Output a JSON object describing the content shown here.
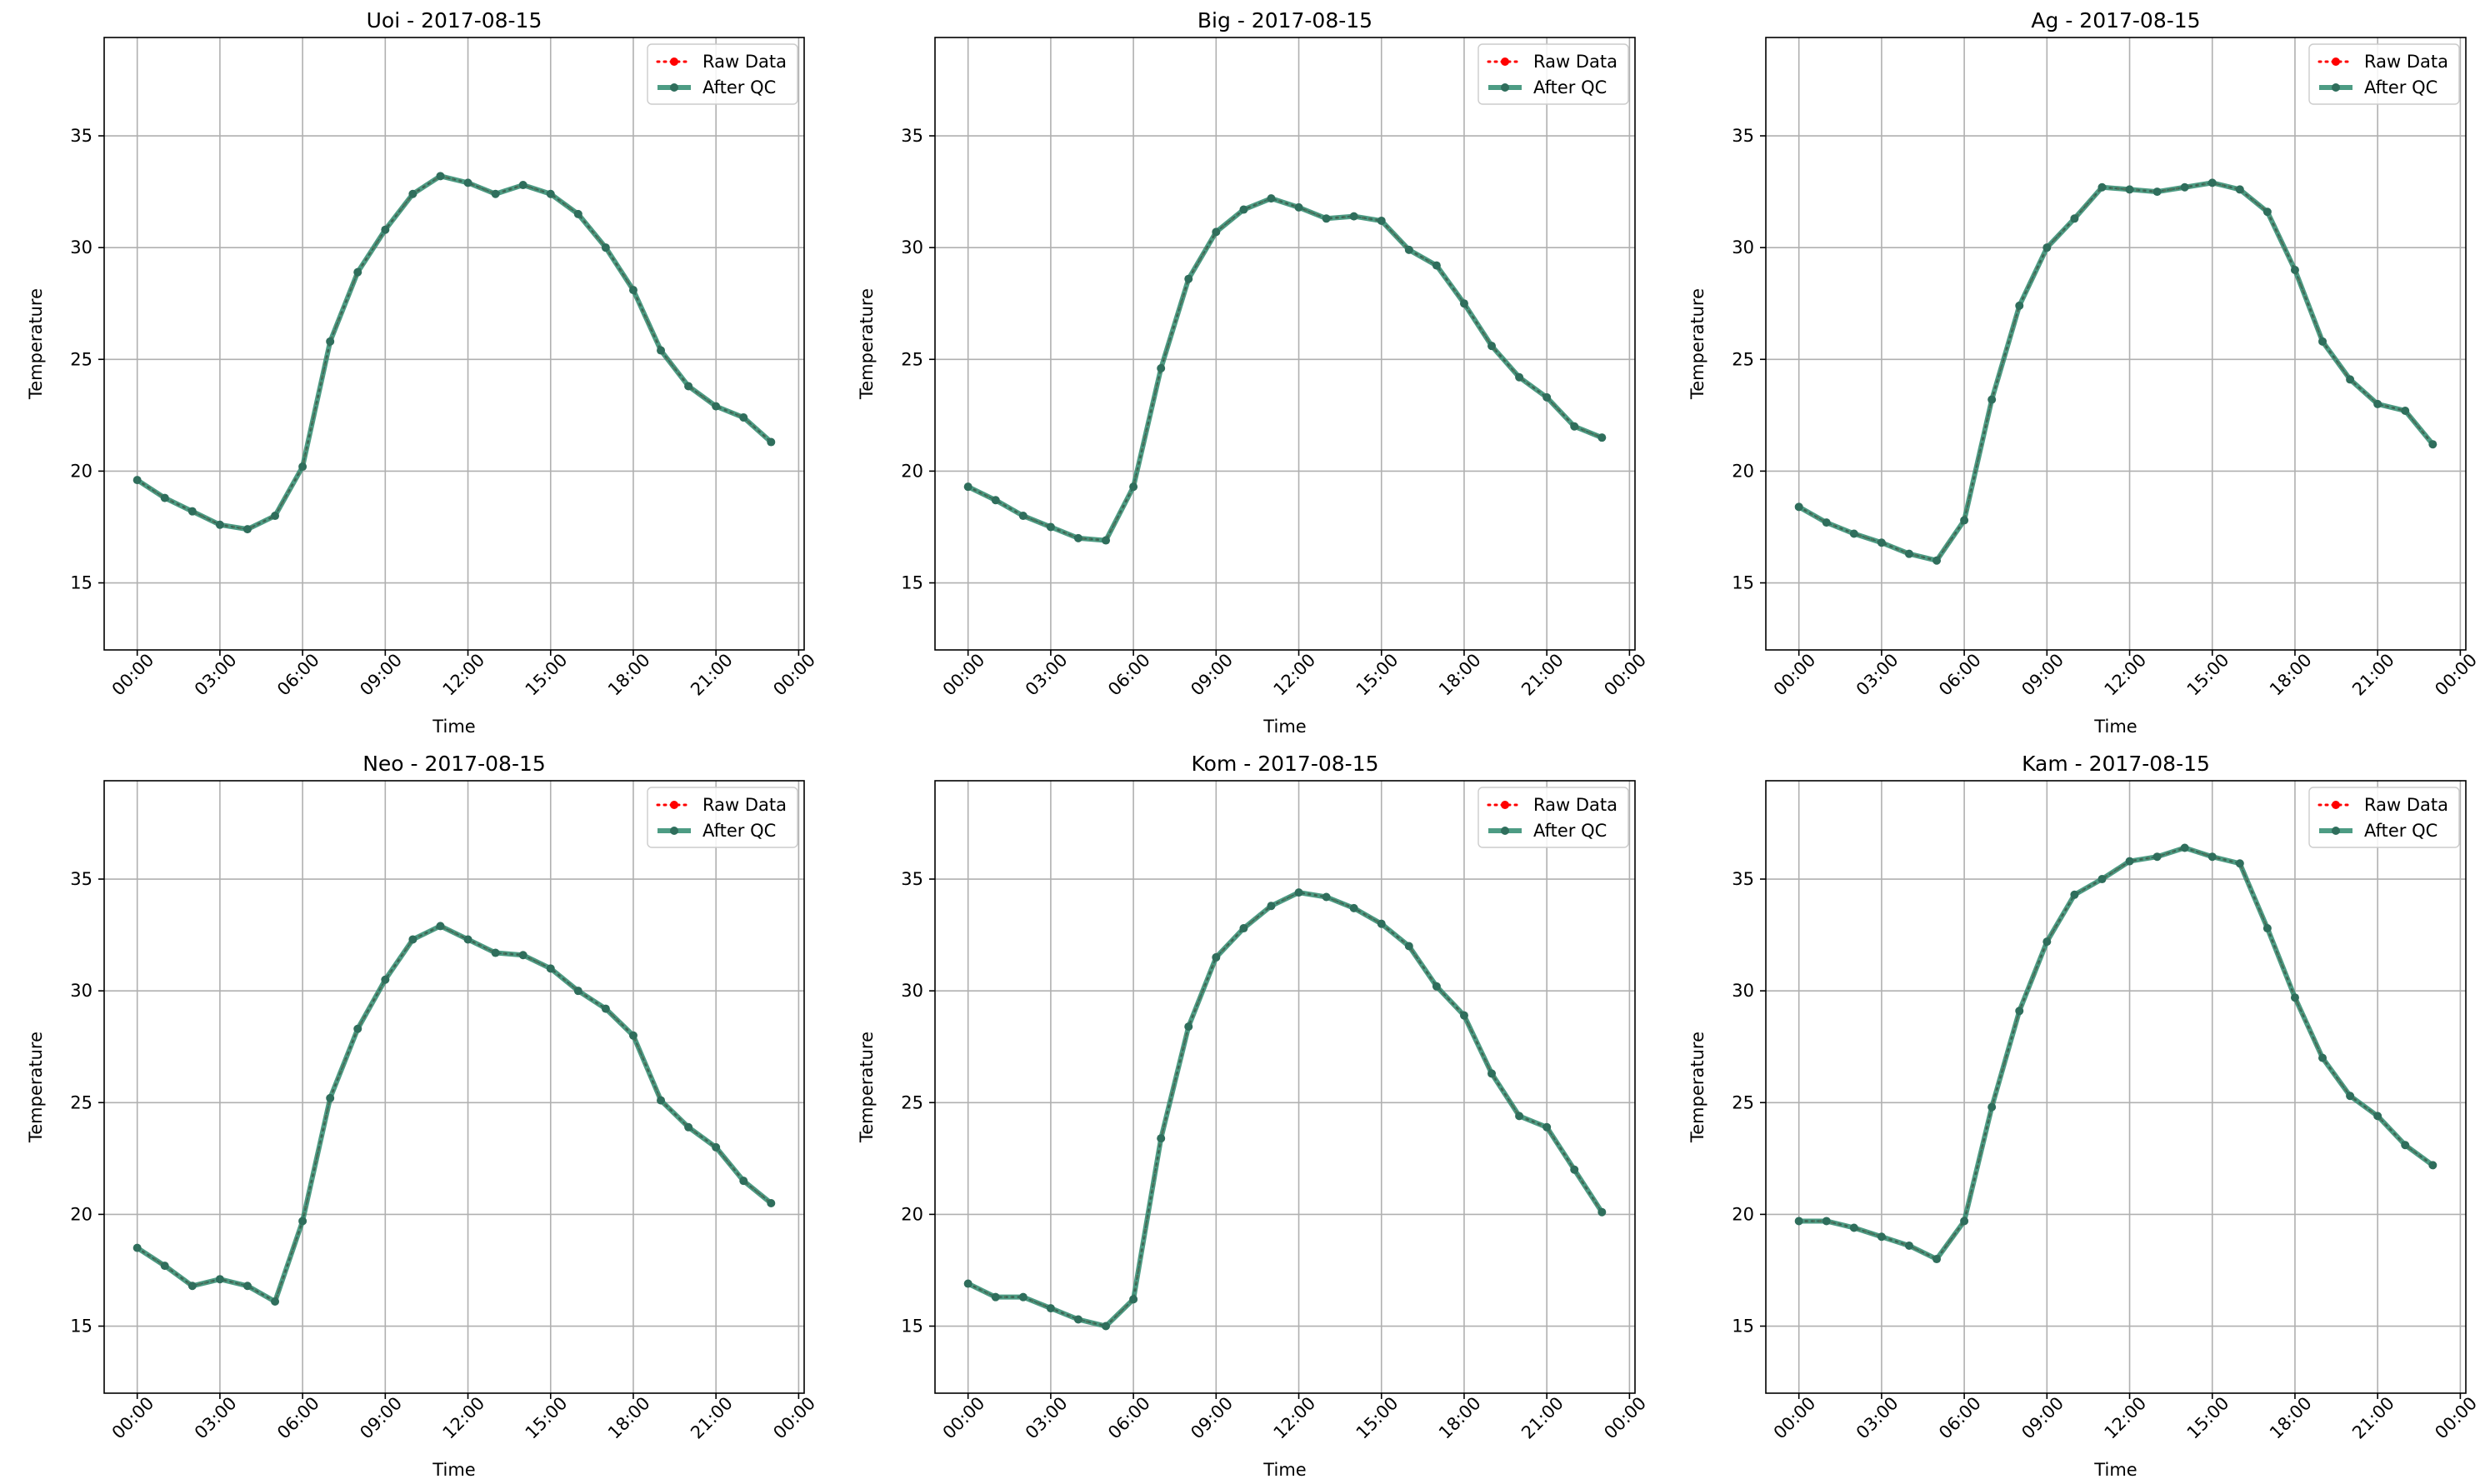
{
  "figure": {
    "legend_placement": "upper right",
    "xtick_labels": [
      "00:00",
      "03:00",
      "06:00",
      "09:00",
      "12:00",
      "15:00",
      "18:00",
      "21:00",
      "00:00"
    ],
    "ytick_labels": [
      "15",
      "20",
      "25",
      "30",
      "35"
    ],
    "colors": {
      "raw": "#ff0000",
      "qc": "#2e8b6e",
      "grid": "#b0b0b0"
    }
  },
  "chart_data": [
    {
      "type": "line",
      "title": "Uoi - 2017-08-15",
      "xlabel": "Time",
      "ylabel": "Temperature",
      "x_unit": "hour of day",
      "xlim": [
        -1.2,
        24.2
      ],
      "ylim": [
        12,
        39.4
      ],
      "grid": true,
      "legend": "upper right",
      "x": [
        0,
        1,
        2,
        3,
        4,
        5,
        6,
        7,
        8,
        9,
        10,
        11,
        12,
        13,
        14,
        15,
        16,
        17,
        18,
        19,
        20,
        21,
        22,
        23
      ],
      "series": [
        {
          "name": "Raw Data",
          "values": [
            19.6,
            18.8,
            18.2,
            17.6,
            17.4,
            18.0,
            20.2,
            25.8,
            28.9,
            30.8,
            32.4,
            33.2,
            32.9,
            32.4,
            32.8,
            32.4,
            31.5,
            30.0,
            28.1,
            25.4,
            23.8,
            22.9,
            22.4,
            21.3
          ]
        },
        {
          "name": "After QC",
          "values": [
            19.6,
            18.8,
            18.2,
            17.6,
            17.4,
            18.0,
            20.2,
            25.8,
            28.9,
            30.8,
            32.4,
            33.2,
            32.9,
            32.4,
            32.8,
            32.4,
            31.5,
            30.0,
            28.1,
            25.4,
            23.8,
            22.9,
            22.4,
            21.3
          ]
        }
      ]
    },
    {
      "type": "line",
      "title": "Big - 2017-08-15",
      "xlabel": "Time",
      "ylabel": "Temperature",
      "x_unit": "hour of day",
      "xlim": [
        -1.2,
        24.2
      ],
      "ylim": [
        12,
        39.4
      ],
      "grid": true,
      "legend": "upper right",
      "x": [
        0,
        1,
        2,
        3,
        4,
        5,
        6,
        7,
        8,
        9,
        10,
        11,
        12,
        13,
        14,
        15,
        16,
        17,
        18,
        19,
        20,
        21,
        22,
        23
      ],
      "series": [
        {
          "name": "Raw Data",
          "values": [
            19.3,
            18.7,
            18.0,
            17.5,
            17.0,
            16.9,
            19.3,
            24.6,
            28.6,
            30.7,
            31.7,
            32.2,
            31.8,
            31.3,
            31.4,
            31.2,
            29.9,
            29.2,
            27.5,
            25.6,
            24.2,
            23.3,
            22.0,
            21.5
          ]
        },
        {
          "name": "After QC",
          "values": [
            19.3,
            18.7,
            18.0,
            17.5,
            17.0,
            16.9,
            19.3,
            24.6,
            28.6,
            30.7,
            31.7,
            32.2,
            31.8,
            31.3,
            31.4,
            31.2,
            29.9,
            29.2,
            27.5,
            25.6,
            24.2,
            23.3,
            22.0,
            21.5
          ]
        }
      ]
    },
    {
      "type": "line",
      "title": "Ag - 2017-08-15",
      "xlabel": "Time",
      "ylabel": "Temperature",
      "x_unit": "hour of day",
      "xlim": [
        -1.2,
        24.2
      ],
      "ylim": [
        12,
        39.4
      ],
      "grid": true,
      "legend": "upper right",
      "x": [
        0,
        1,
        2,
        3,
        4,
        5,
        6,
        7,
        8,
        9,
        10,
        11,
        12,
        13,
        14,
        15,
        16,
        17,
        18,
        19,
        20,
        21,
        22,
        23
      ],
      "series": [
        {
          "name": "Raw Data",
          "values": [
            18.4,
            17.7,
            17.2,
            16.8,
            16.3,
            16.0,
            17.8,
            23.2,
            27.4,
            30.0,
            31.3,
            32.7,
            32.6,
            32.5,
            32.7,
            32.9,
            32.6,
            31.6,
            29.0,
            25.8,
            24.1,
            23.0,
            22.7,
            21.2
          ]
        },
        {
          "name": "After QC",
          "values": [
            18.4,
            17.7,
            17.2,
            16.8,
            16.3,
            16.0,
            17.8,
            23.2,
            27.4,
            30.0,
            31.3,
            32.7,
            32.6,
            32.5,
            32.7,
            32.9,
            32.6,
            31.6,
            29.0,
            25.8,
            24.1,
            23.0,
            22.7,
            21.2
          ]
        }
      ]
    },
    {
      "type": "line",
      "title": "Neo - 2017-08-15",
      "xlabel": "Time",
      "ylabel": "Temperature",
      "x_unit": "hour of day",
      "xlim": [
        -1.2,
        24.2
      ],
      "ylim": [
        12,
        39.4
      ],
      "grid": true,
      "legend": "upper right",
      "x": [
        0,
        1,
        2,
        3,
        4,
        5,
        6,
        7,
        8,
        9,
        10,
        11,
        12,
        13,
        14,
        15,
        16,
        17,
        18,
        19,
        20,
        21,
        22,
        23
      ],
      "series": [
        {
          "name": "Raw Data",
          "values": [
            18.5,
            17.7,
            16.8,
            17.1,
            16.8,
            16.1,
            19.7,
            25.2,
            28.3,
            30.5,
            32.3,
            32.9,
            32.3,
            31.7,
            31.6,
            31.0,
            30.0,
            29.2,
            28.0,
            25.1,
            23.9,
            23.0,
            21.5,
            20.5
          ]
        },
        {
          "name": "After QC",
          "values": [
            18.5,
            17.7,
            16.8,
            17.1,
            16.8,
            16.1,
            19.7,
            25.2,
            28.3,
            30.5,
            32.3,
            32.9,
            32.3,
            31.7,
            31.6,
            31.0,
            30.0,
            29.2,
            28.0,
            25.1,
            23.9,
            23.0,
            21.5,
            20.5
          ]
        }
      ]
    },
    {
      "type": "line",
      "title": "Kom - 2017-08-15",
      "xlabel": "Time",
      "ylabel": "Temperature",
      "x_unit": "hour of day",
      "xlim": [
        -1.2,
        24.2
      ],
      "ylim": [
        12,
        39.4
      ],
      "grid": true,
      "legend": "upper right",
      "x": [
        0,
        1,
        2,
        3,
        4,
        5,
        6,
        7,
        8,
        9,
        10,
        11,
        12,
        13,
        14,
        15,
        16,
        17,
        18,
        19,
        20,
        21,
        22,
        23
      ],
      "series": [
        {
          "name": "Raw Data",
          "values": [
            16.9,
            16.3,
            16.3,
            15.8,
            15.3,
            15.0,
            16.2,
            23.4,
            28.4,
            31.5,
            32.8,
            33.8,
            34.4,
            34.2,
            33.7,
            33.0,
            32.0,
            30.2,
            28.9,
            26.3,
            24.4,
            23.9,
            22.0,
            20.1
          ]
        },
        {
          "name": "After QC",
          "values": [
            16.9,
            16.3,
            16.3,
            15.8,
            15.3,
            15.0,
            16.2,
            23.4,
            28.4,
            31.5,
            32.8,
            33.8,
            34.4,
            34.2,
            33.7,
            33.0,
            32.0,
            30.2,
            28.9,
            26.3,
            24.4,
            23.9,
            22.0,
            20.1
          ]
        }
      ]
    },
    {
      "type": "line",
      "title": "Kam - 2017-08-15",
      "xlabel": "Time",
      "ylabel": "Temperature",
      "x_unit": "hour of day",
      "xlim": [
        -1.2,
        24.2
      ],
      "ylim": [
        12,
        39.4
      ],
      "grid": true,
      "legend": "upper right",
      "x": [
        0,
        1,
        2,
        3,
        4,
        5,
        6,
        7,
        8,
        9,
        10,
        11,
        12,
        13,
        14,
        15,
        16,
        17,
        18,
        19,
        20,
        21,
        22,
        23
      ],
      "series": [
        {
          "name": "Raw Data",
          "values": [
            19.7,
            19.7,
            19.4,
            19.0,
            18.6,
            18.0,
            19.7,
            24.8,
            29.1,
            32.2,
            34.3,
            35.0,
            35.8,
            36.0,
            36.4,
            36.0,
            35.7,
            32.8,
            29.7,
            27.0,
            25.3,
            24.4,
            23.1,
            22.2
          ]
        },
        {
          "name": "After QC",
          "values": [
            19.7,
            19.7,
            19.4,
            19.0,
            18.6,
            18.0,
            19.7,
            24.8,
            29.1,
            32.2,
            34.3,
            35.0,
            35.8,
            36.0,
            36.4,
            36.0,
            35.7,
            32.8,
            29.7,
            27.0,
            25.3,
            24.4,
            23.1,
            22.2
          ]
        }
      ]
    }
  ]
}
